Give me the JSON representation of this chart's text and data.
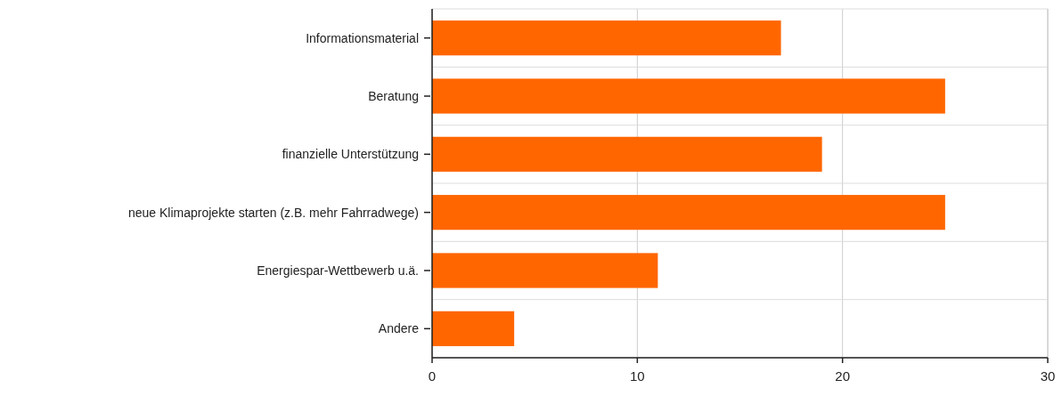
{
  "chart_data": {
    "type": "bar",
    "orientation": "horizontal",
    "categories": [
      "Informationsmaterial",
      "Beratung",
      "finanzielle Unterstützung",
      "neue Klimaprojekte starten (z.B. mehr Fahrradwege)",
      "Energiespar-Wettbewerb u.ä.",
      "Andere"
    ],
    "values": [
      17,
      25,
      19,
      25,
      11,
      4
    ],
    "color": "#ff6600",
    "xlim": [
      0,
      30
    ],
    "xticks": [
      0,
      10,
      20,
      30
    ],
    "grid": true
  }
}
